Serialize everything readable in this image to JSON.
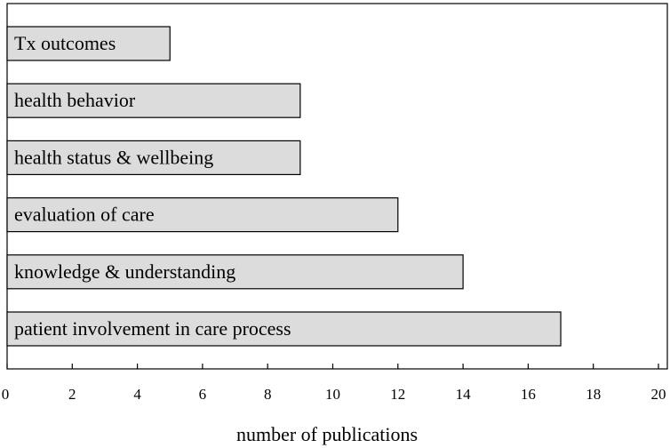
{
  "chart_data": {
    "type": "bar",
    "orientation": "horizontal",
    "categories": [
      "Tx outcomes",
      "health behavior",
      "health status & wellbeing",
      "evaluation of care",
      "knowledge & understanding",
      "patient involvement in care process"
    ],
    "values": [
      5,
      9,
      9,
      12,
      14,
      17
    ],
    "title": "",
    "xlabel": "number of publications",
    "ylabel": "",
    "xlim": [
      0,
      20
    ],
    "xticks": [
      0,
      2,
      4,
      6,
      8,
      10,
      12,
      14,
      16,
      18,
      20
    ],
    "grid": false,
    "legend": "none",
    "colors": {
      "bar_fill": "#dcdcdc",
      "bar_stroke": "#000000"
    }
  }
}
